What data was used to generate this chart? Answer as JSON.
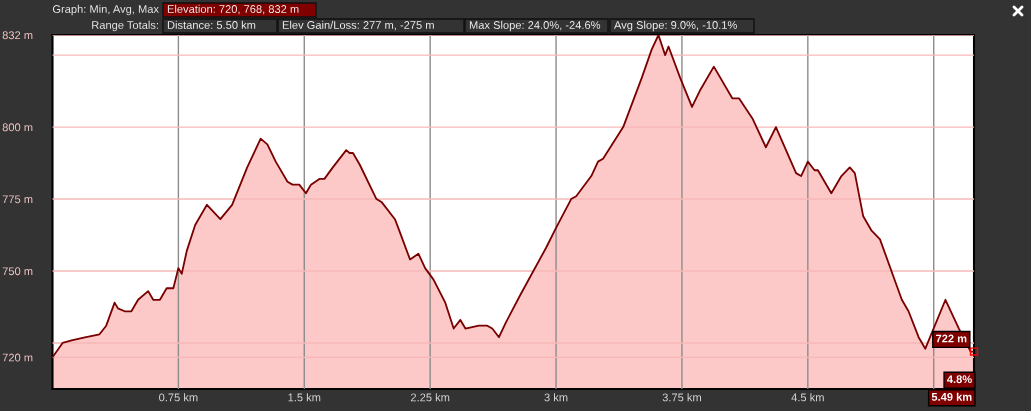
{
  "chart_data": {
    "type": "area",
    "x": [
      0.0,
      0.06,
      0.12,
      0.2,
      0.28,
      0.32,
      0.37,
      0.39,
      0.43,
      0.47,
      0.51,
      0.57,
      0.6,
      0.64,
      0.68,
      0.72,
      0.75,
      0.77,
      0.8,
      0.85,
      0.92,
      1.0,
      1.07,
      1.16,
      1.24,
      1.28,
      1.33,
      1.4,
      1.43,
      1.47,
      1.51,
      1.54,
      1.59,
      1.62,
      1.67,
      1.75,
      1.77,
      1.79,
      1.83,
      1.93,
      1.96,
      2.04,
      2.06,
      2.13,
      2.18,
      2.22,
      2.27,
      2.34,
      2.39,
      2.43,
      2.46,
      2.54,
      2.59,
      2.62,
      2.66,
      2.7,
      2.79,
      2.94,
      3.0,
      3.09,
      3.12,
      3.21,
      3.25,
      3.28,
      3.4,
      3.51,
      3.57,
      3.61,
      3.65,
      3.67,
      3.74,
      3.81,
      3.86,
      3.94,
      4.05,
      4.09,
      4.17,
      4.25,
      4.31,
      4.43,
      4.46,
      4.5,
      4.54,
      4.56,
      4.64,
      4.7,
      4.75,
      4.78,
      4.83,
      4.88,
      4.93,
      5.06,
      5.1,
      5.16,
      5.2,
      5.32,
      5.4,
      5.47,
      5.49
    ],
    "values": [
      720,
      725,
      726,
      727,
      728,
      731,
      739,
      737,
      736,
      736,
      740,
      743,
      740,
      740,
      744,
      744,
      751,
      749,
      757,
      766,
      773,
      768,
      773,
      786,
      796,
      794,
      788,
      781,
      780,
      780,
      777,
      780,
      782,
      782,
      786,
      792,
      791,
      791,
      787,
      775,
      774,
      768,
      765,
      754,
      756,
      751,
      747,
      739,
      730,
      733,
      730,
      731,
      731,
      730,
      727,
      732,
      742,
      758,
      765,
      775,
      776,
      783,
      788,
      789,
      800,
      817,
      827,
      832,
      825,
      828,
      817,
      807,
      813,
      821,
      810,
      810,
      803,
      793,
      800,
      784,
      783,
      788,
      785,
      785,
      777,
      783,
      786,
      784,
      769,
      764,
      761,
      740,
      736,
      727,
      723,
      740,
      730,
      722,
      722
    ],
    "color": "#fcc8c8",
    "xlim": [
      0,
      5.49
    ],
    "xticks": [
      {
        "value": 0.75,
        "label": "0.75 km"
      },
      {
        "value": 1.5,
        "label": "1.5 km"
      },
      {
        "value": 2.25,
        "label": "2.25 km"
      },
      {
        "value": 3,
        "label": "3 km"
      },
      {
        "value": 3.75,
        "label": "3.75 km"
      },
      {
        "value": 4.5,
        "label": "4.5 km"
      },
      {
        "value": 5.25,
        "label": null
      }
    ],
    "ylim": [
      709,
      832
    ],
    "yticks": [
      {
        "value": 720,
        "label": "720 m"
      },
      {
        "value": 725,
        "label": null
      },
      {
        "value": 750,
        "label": "750 m"
      },
      {
        "value": 775,
        "label": "775 m"
      },
      {
        "value": 800,
        "label": "800 m"
      },
      {
        "value": 825,
        "label": null
      },
      {
        "value": 832,
        "label": "832 m"
      }
    ],
    "grid": true,
    "annotations": [
      "Graph: Min, Avg, Max",
      "Elevation: 720, 768, 832 m",
      "Range Totals:",
      "Distance: 5.50 km",
      "Elev Gain/Loss: 277 m, -275 m",
      "Max Slope: 24.0%, -24.6%",
      "Avg Slope: 9.0%, -10.1%",
      {
        "text": "722 m",
        "x": 5.49,
        "y": 722
      },
      "4.8%",
      "5.49 km"
    ]
  }
}
